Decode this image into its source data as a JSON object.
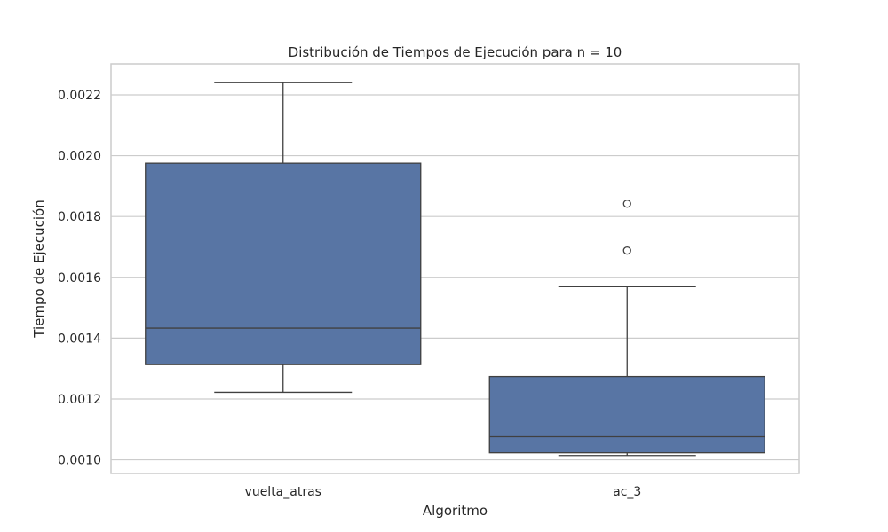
{
  "chart_data": {
    "type": "boxplot",
    "title": "Distribución de Tiempos de Ejecución para n = 10",
    "xlabel": "Algoritmo",
    "ylabel": "Tiempo de Ejecución",
    "ylim": [
      0.000955,
      0.002302
    ],
    "yticks": [
      "0.0010",
      "0.0012",
      "0.0014",
      "0.0016",
      "0.0018",
      "0.0020",
      "0.0022"
    ],
    "grid": true,
    "box_color": "#5875a4",
    "line_color": "#404040",
    "categories": [
      "vuelta_atras",
      "ac_3"
    ],
    "boxes": [
      {
        "category": "vuelta_atras",
        "whisker_low": 0.001222,
        "q1": 0.001313,
        "median": 0.001433,
        "q3": 0.001975,
        "whisker_high": 0.00224,
        "outliers": []
      },
      {
        "category": "ac_3",
        "whisker_low": 0.001014,
        "q1": 0.001023,
        "median": 0.001076,
        "q3": 0.001274,
        "whisker_high": 0.001569,
        "outliers": [
          0.001688,
          0.001842
        ]
      }
    ]
  }
}
